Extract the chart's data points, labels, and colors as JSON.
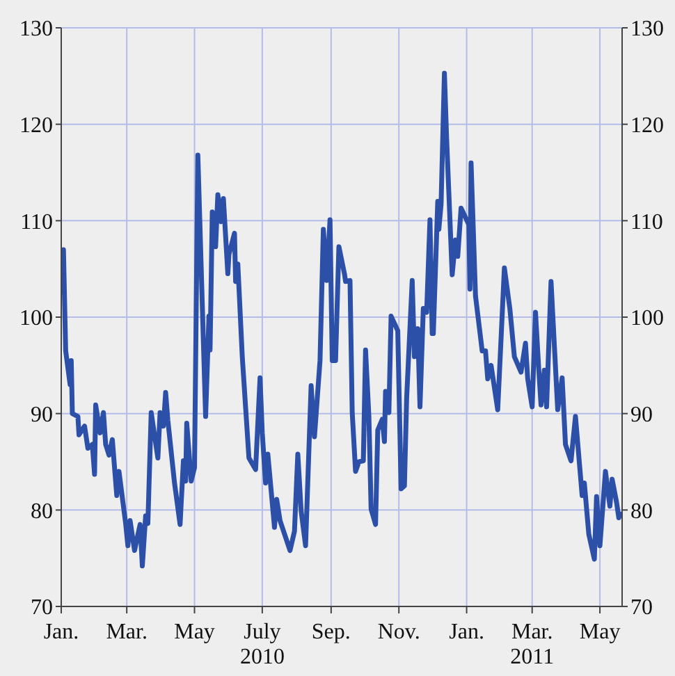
{
  "chart_data": {
    "type": "line",
    "x": [
      "2010-01-02",
      "2010-01-03",
      "2010-01-05",
      "2010-01-09",
      "2010-01-10",
      "2010-01-11",
      "2010-01-16",
      "2010-01-17",
      "2010-01-22",
      "2010-01-25",
      "2010-01-29",
      "2010-01-31",
      "2010-02-01",
      "2010-02-05",
      "2010-02-08",
      "2010-02-10",
      "2010-02-13",
      "2010-02-16",
      "2010-02-20",
      "2010-02-22",
      "2010-02-28",
      "2010-03-02",
      "2010-03-04",
      "2010-03-08",
      "2010-03-13",
      "2010-03-15",
      "2010-03-18",
      "2010-03-20",
      "2010-03-23",
      "2010-03-29",
      "2010-03-31",
      "2010-04-03",
      "2010-04-05",
      "2010-04-07",
      "2010-04-13",
      "2010-04-18",
      "2010-04-21",
      "2010-04-23",
      "2010-04-24",
      "2010-04-28",
      "2010-05-01",
      "2010-05-04",
      "2010-05-11",
      "2010-05-14",
      "2010-05-15",
      "2010-05-17",
      "2010-05-20",
      "2010-05-22",
      "2010-05-25",
      "2010-05-27",
      "2010-05-31",
      "2010-06-01",
      "2010-06-06",
      "2010-06-07",
      "2010-06-09",
      "2010-06-13",
      "2010-06-19",
      "2010-06-25",
      "2010-06-29",
      "2010-07-01",
      "2010-07-04",
      "2010-07-06",
      "2010-07-12",
      "2010-07-14",
      "2010-07-17",
      "2010-07-26",
      "2010-07-30",
      "2010-08-02",
      "2010-08-05",
      "2010-08-09",
      "2010-08-14",
      "2010-08-17",
      "2010-08-22",
      "2010-08-25",
      "2010-08-28",
      "2010-08-31",
      "2010-09-02",
      "2010-09-05",
      "2010-09-08",
      "2010-09-13",
      "2010-09-14",
      "2010-09-18",
      "2010-09-20",
      "2010-09-23",
      "2010-09-26",
      "2010-09-30",
      "2010-10-02",
      "2010-10-05",
      "2010-10-07",
      "2010-10-11",
      "2010-10-13",
      "2010-10-17",
      "2010-10-19",
      "2010-10-20",
      "2010-10-23",
      "2010-10-25",
      "2010-10-31",
      "2010-11-03",
      "2010-11-06",
      "2010-11-08",
      "2010-11-13",
      "2010-11-15",
      "2010-11-18",
      "2010-11-20",
      "2010-11-23",
      "2010-11-26",
      "2010-11-29",
      "2010-12-01",
      "2010-12-02",
      "2010-12-06",
      "2010-12-07",
      "2010-12-09",
      "2010-12-12",
      "2010-12-14",
      "2010-12-19",
      "2010-12-22",
      "2010-12-24",
      "2010-12-27",
      "2011-01-03",
      "2011-01-04",
      "2011-01-05",
      "2011-01-09",
      "2011-01-15",
      "2011-01-18",
      "2011-01-20",
      "2011-01-23",
      "2011-01-29",
      "2011-02-04",
      "2011-02-09",
      "2011-02-13",
      "2011-02-19",
      "2011-02-23",
      "2011-02-25",
      "2011-03-01",
      "2011-03-04",
      "2011-03-07",
      "2011-03-09",
      "2011-03-12",
      "2011-03-14",
      "2011-03-18",
      "2011-03-24",
      "2011-03-28",
      "2011-03-31",
      "2011-04-05",
      "2011-04-09",
      "2011-04-15",
      "2011-04-17",
      "2011-04-21",
      "2011-04-26",
      "2011-04-28",
      "2011-05-01",
      "2011-05-06",
      "2011-05-10",
      "2011-05-12",
      "2011-05-16",
      "2011-05-18",
      "2011-05-19"
    ],
    "series": [
      {
        "color": "#2c4fa8",
        "values": [
          102.7,
          107.0,
          96.5,
          93.0,
          95.5,
          90.0,
          89.7,
          87.8,
          88.7,
          86.4,
          86.8,
          83.7,
          90.9,
          88.0,
          90.1,
          86.8,
          85.7,
          87.3,
          81.5,
          84.0,
          78.6,
          76.3,
          78.9,
          75.8,
          78.5,
          74.2,
          79.4,
          78.6,
          90.1,
          85.4,
          90.1,
          88.7,
          92.2,
          89.3,
          82.8,
          78.5,
          85.1,
          83.0,
          89.0,
          83.0,
          84.4,
          116.8,
          89.7,
          100.1,
          96.6,
          110.9,
          107.3,
          112.7,
          109.9,
          112.3,
          104.5,
          106.5,
          108.7,
          103.7,
          105.5,
          95.9,
          85.4,
          84.2,
          93.7,
          88.0,
          82.8,
          85.8,
          78.2,
          81.1,
          78.9,
          75.8,
          77.8,
          85.8,
          79.9,
          76.3,
          92.9,
          87.6,
          95.5,
          109.1,
          103.8,
          110.1,
          95.5,
          95.5,
          107.3,
          104.5,
          103.7,
          103.8,
          90.1,
          84.0,
          85.0,
          85.1,
          96.6,
          89.7,
          80.1,
          78.5,
          88.3,
          89.4,
          87.1,
          92.3,
          90.1,
          100.1,
          98.6,
          82.2,
          82.5,
          91.6,
          103.8,
          95.9,
          98.8,
          90.7,
          100.9,
          100.5,
          110.1,
          98.3,
          98.3,
          112.0,
          109.1,
          111.7,
          125.3,
          118.5,
          104.4,
          108.0,
          106.3,
          111.3,
          109.6,
          102.9,
          116.0,
          102.2,
          96.5,
          96.5,
          93.6,
          95.0,
          90.4,
          105.1,
          100.8,
          95.9,
          94.3,
          97.3,
          93.6,
          90.7,
          100.5,
          94.5,
          90.9,
          94.5,
          90.7,
          103.7,
          90.4,
          93.7,
          86.8,
          85.1,
          89.7,
          81.5,
          82.8,
          77.5,
          74.9,
          81.4,
          76.3,
          84.0,
          80.4,
          83.2,
          80.8,
          79.2,
          79.6
        ]
      }
    ],
    "xlim": [
      "2010-01-01",
      "2011-05-21"
    ],
    "xticks": [
      {
        "value": "2010-01-01",
        "label": "Jan."
      },
      {
        "value": "2010-03-01",
        "label": "Mar."
      },
      {
        "value": "2010-05-01",
        "label": "May"
      },
      {
        "value": "2010-07-01",
        "label": "July\n2010"
      },
      {
        "value": "2010-09-01",
        "label": "Sep."
      },
      {
        "value": "2010-11-01",
        "label": "Nov."
      },
      {
        "value": "2011-01-01",
        "label": "Jan."
      },
      {
        "value": "2011-03-01",
        "label": "Mar.\n2011"
      },
      {
        "value": "2011-05-01",
        "label": "May"
      }
    ],
    "ylim": [
      70,
      130
    ],
    "yticks": [
      70,
      80,
      90,
      100,
      110,
      120,
      130
    ],
    "y2lim": [
      70,
      130
    ],
    "y2ticks": [
      70,
      80,
      90,
      100,
      110,
      120,
      130
    ],
    "grid": true,
    "marker": "none",
    "line_style": "solid"
  }
}
